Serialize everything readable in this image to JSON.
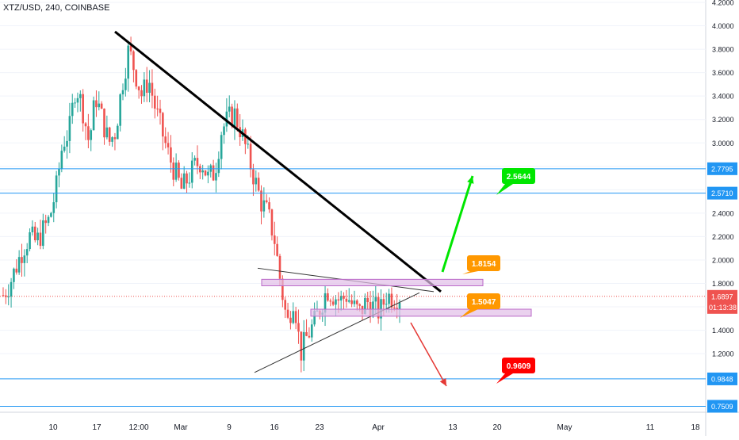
{
  "header": {
    "symbol_line": "XTZ/USD, 240, COINBASE"
  },
  "colors": {
    "up": "#26a69a",
    "down": "#ef5350",
    "wick": "#555555",
    "trendline": "#000000",
    "hline": "#2196f3",
    "rect_fill": "rgba(225,190,231,0.7)",
    "rect_stroke": "#ba68c8",
    "green_label": "#00e600",
    "orange_label": "#ff9800",
    "red_label": "#ff0000",
    "current_price_bg": "#ef5350",
    "axis_text": "#131722",
    "grid": "#f0f3fa"
  },
  "chart_data": {
    "type": "candlestick",
    "title": "XTZ/USD, 240, COINBASE",
    "ylim": [
      0.7,
      4.2
    ],
    "y_ticks": [
      "1.2000",
      "1.4000",
      "1.6000",
      "1.8000",
      "2.0000",
      "2.2000",
      "2.4000",
      "2.6000",
      "2.8000",
      "3.0000",
      "3.2000",
      "3.4000",
      "3.6000",
      "3.8000",
      "4.0000",
      "4.2000"
    ],
    "x_ticks": [
      "10",
      "17",
      "12:00",
      "Mar",
      "9",
      "16",
      "23",
      "Apr",
      "13",
      "20",
      "May",
      "11",
      "18"
    ],
    "price_levels": [
      "2.7795",
      "2.5710",
      "0.9848",
      "0.7509"
    ],
    "current_price": "1.6897",
    "countdown": "01:13:38",
    "targets": [
      {
        "label": "2.5644",
        "color_key": "green_label"
      },
      {
        "label": "1.8154",
        "color_key": "orange_label"
      },
      {
        "label": "1.5047",
        "color_key": "orange_label"
      },
      {
        "label": "0.9609",
        "color_key": "red_label"
      }
    ],
    "price_path": [
      1.7,
      1.8,
      1.95,
      2.1,
      2.2,
      2.15,
      2.25,
      2.35,
      2.6,
      3.0,
      3.1,
      3.5,
      3.3,
      3.0,
      3.4,
      3.2,
      3.0,
      3.1,
      3.5,
      3.8,
      3.6,
      3.4,
      3.55,
      3.3,
      3.1,
      2.9,
      2.75,
      2.6,
      2.7,
      2.8,
      2.85,
      2.7,
      2.75,
      3.1,
      3.2,
      3.25,
      3.1,
      2.9,
      2.7,
      2.5,
      2.4,
      2.2,
      1.8,
      1.45,
      1.7,
      1.2,
      1.35,
      1.45,
      1.6,
      1.75,
      1.7,
      1.65,
      1.7,
      1.6,
      1.55,
      1.65,
      1.6,
      1.55,
      1.7,
      1.68,
      1.69
    ]
  }
}
